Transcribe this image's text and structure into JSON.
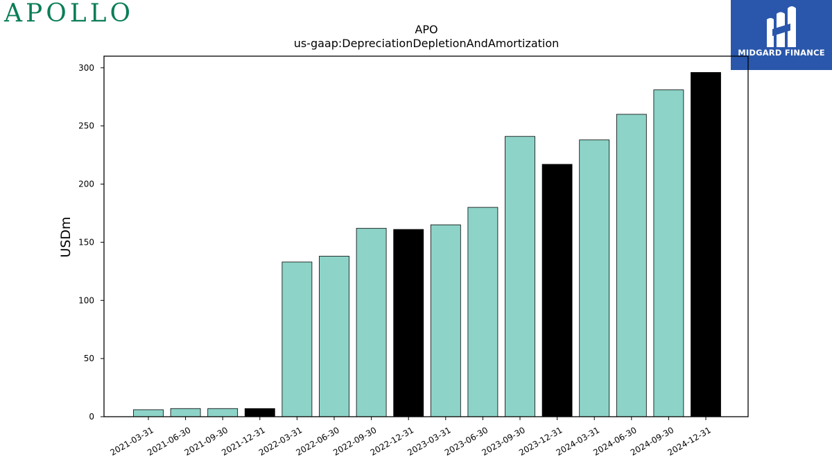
{
  "logos": {
    "company": "APOLLO",
    "provider": "MIDGARD FINANCE"
  },
  "colors": {
    "bar_default": "#8dd3c7",
    "bar_q4": "#000000",
    "apollo_green": "#0a7d57",
    "midgard_blue": "#2a57ab"
  },
  "chart_data": {
    "type": "bar",
    "title": "APO",
    "subtitle": "us-gaap:DepreciationDepletionAndAmortization",
    "xlabel": "",
    "ylabel": "USDm",
    "ylim": [
      0,
      310
    ],
    "yticks": [
      0,
      50,
      100,
      150,
      200,
      250,
      300
    ],
    "categories": [
      "2021-03-31",
      "2021-06-30",
      "2021-09-30",
      "2021-12-31",
      "2022-03-31",
      "2022-06-30",
      "2022-09-30",
      "2022-12-31",
      "2023-03-31",
      "2023-06-30",
      "2023-09-30",
      "2023-12-31",
      "2024-03-31",
      "2024-06-30",
      "2024-09-30",
      "2024-12-31"
    ],
    "values": [
      6,
      7,
      7,
      7,
      133,
      138,
      162,
      161,
      165,
      180,
      241,
      217,
      238,
      260,
      281,
      296
    ],
    "highlight": [
      false,
      false,
      false,
      true,
      false,
      false,
      false,
      true,
      false,
      false,
      false,
      true,
      false,
      false,
      false,
      true
    ],
    "grid": false,
    "legend": "none"
  }
}
